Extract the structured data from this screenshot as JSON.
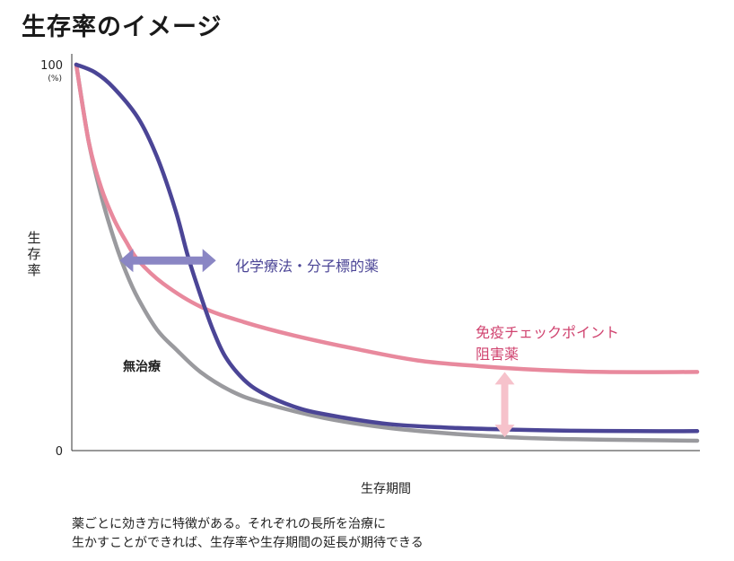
{
  "page": {
    "title": "生存率のイメージ",
    "caption_lines": [
      "薬ごとに効き方に特徴がある。それぞれの長所を治療に",
      "生かすことができれば、生存率や生存期間の延長が期待できる"
    ]
  },
  "chart_data": {
    "type": "line",
    "title": "生存率のイメージ",
    "xlabel": "生存期間",
    "ylabel": "生存率",
    "y_ticks": [
      {
        "value": 100,
        "label": "100"
      },
      {
        "value": 0,
        "label": "0"
      }
    ],
    "y_unit": "(%)",
    "xlim": [
      0,
      100
    ],
    "ylim": [
      0,
      100
    ],
    "grid": false,
    "series": [
      {
        "name": "無治療",
        "color": "#9a9a9e",
        "x": [
          0,
          2,
          4,
          6,
          8,
          10,
          13,
          16,
          20,
          25,
          30,
          40,
          50,
          60,
          70,
          80,
          90,
          100
        ],
        "y": [
          100,
          80,
          66,
          55,
          46,
          39,
          31,
          26,
          20,
          15,
          12,
          8,
          5.5,
          4,
          3,
          2.5,
          2.3,
          2.1
        ]
      },
      {
        "name": "化学療法・分子標的薬",
        "color": "#4b4596",
        "x": [
          0,
          3,
          6,
          10,
          13,
          16,
          18,
          20,
          22,
          24,
          27,
          30,
          35,
          40,
          50,
          60,
          70,
          80,
          90,
          100
        ],
        "y": [
          100,
          98,
          94,
          86,
          76,
          62,
          50,
          40,
          31,
          24,
          18,
          14.5,
          11,
          9,
          6.5,
          5.5,
          5,
          4.7,
          4.6,
          4.6
        ]
      },
      {
        "name": "免疫チェックポイント阻害薬",
        "color": "#e8899d",
        "x": [
          0,
          2,
          4,
          6,
          8,
          10,
          14,
          20,
          27,
          35,
          45,
          55,
          65,
          75,
          85,
          100
        ],
        "y": [
          100,
          80,
          68,
          60,
          54,
          49,
          43,
          37,
          33,
          29.5,
          26,
          23,
          21.5,
          20.5,
          20,
          20
        ]
      }
    ],
    "annotations": [
      {
        "text": "化学療法・分子標的薬",
        "color": "#4b4596"
      },
      {
        "text": "免疫チェックポイント",
        "color": "#d0436f"
      },
      {
        "text": "阻害薬",
        "color": "#d0436f"
      },
      {
        "text": "無治療",
        "color": "#222222"
      }
    ],
    "arrows": [
      {
        "name": "chemo-effect",
        "direction": "horizontal",
        "color": "#8a86c4",
        "x_from": 7,
        "x_to": 22.5,
        "y": 49
      },
      {
        "name": "immuno-effect",
        "direction": "vertical",
        "color": "#f6c2cb",
        "x": 69,
        "y_from": 3,
        "y_to": 20
      }
    ]
  }
}
